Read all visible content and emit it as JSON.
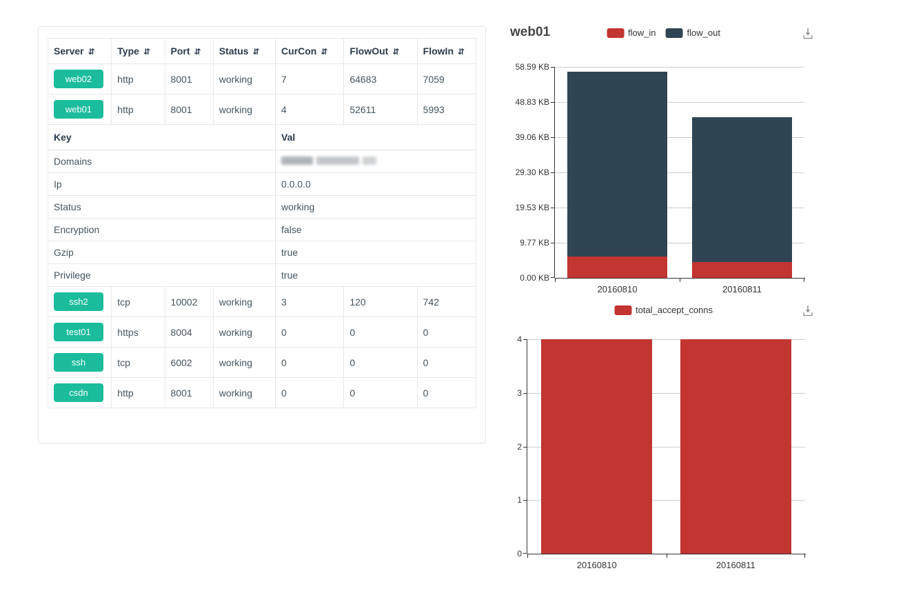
{
  "table": {
    "headers": [
      "Server",
      "Type",
      "Port",
      "Status",
      "CurCon",
      "FlowOut",
      "FlowIn"
    ],
    "sort_icon": "⇵",
    "badge_color": "#1abc9c",
    "server_rows_top": [
      {
        "server": "web02",
        "type": "http",
        "port": "8001",
        "status": "working",
        "curcon": "7",
        "flowout": "64683",
        "flowin": "7059"
      },
      {
        "server": "web01",
        "type": "http",
        "port": "8001",
        "status": "working",
        "curcon": "4",
        "flowout": "52611",
        "flowin": "5993"
      }
    ],
    "kv_header": {
      "key": "Key",
      "val": "Val"
    },
    "kv_rows": [
      {
        "key": "Domains",
        "val": "",
        "masked": true
      },
      {
        "key": "Ip",
        "val": "0.0.0.0"
      },
      {
        "key": "Status",
        "val": "working"
      },
      {
        "key": "Encryption",
        "val": "false"
      },
      {
        "key": "Gzip",
        "val": "true"
      },
      {
        "key": "Privilege",
        "val": "true"
      }
    ],
    "server_rows_bottom": [
      {
        "server": "ssh2",
        "type": "tcp",
        "port": "10002",
        "status": "working",
        "curcon": "3",
        "flowout": "120",
        "flowin": "742"
      },
      {
        "server": "test01",
        "type": "https",
        "port": "8004",
        "status": "working",
        "curcon": "0",
        "flowout": "0",
        "flowin": "0"
      },
      {
        "server": "ssh",
        "type": "tcp",
        "port": "6002",
        "status": "working",
        "curcon": "0",
        "flowout": "0",
        "flowin": "0"
      },
      {
        "server": "csdn",
        "type": "http",
        "port": "8001",
        "status": "working",
        "curcon": "0",
        "flowout": "0",
        "flowin": "0"
      }
    ]
  },
  "chart_data": [
    {
      "type": "bar",
      "stacked": true,
      "title": "web01",
      "categories": [
        "20160810",
        "20160811"
      ],
      "series": [
        {
          "name": "flow_in",
          "color": "#c23531",
          "values": [
            5.85,
            4.4
          ]
        },
        {
          "name": "flow_out",
          "color": "#2f4554",
          "values": [
            51.38,
            40.2
          ]
        }
      ],
      "unit": "KB",
      "ymax": 58.59,
      "yticks": [
        "0.00 KB",
        "9.77 KB",
        "19.53 KB",
        "29.30 KB",
        "39.06 KB",
        "48.83 KB",
        "58.59 KB"
      ],
      "xlabel": "",
      "ylabel": "",
      "legend_position": "top",
      "grid": true,
      "toolbox": [
        "save-as-image"
      ]
    },
    {
      "type": "bar",
      "stacked": false,
      "title": "",
      "categories": [
        "20160810",
        "20160811"
      ],
      "series": [
        {
          "name": "total_accept_conns",
          "color": "#c23531",
          "values": [
            4,
            4
          ]
        }
      ],
      "unit": "",
      "ymax": 4,
      "yticks": [
        "0",
        "1",
        "2",
        "3",
        "4"
      ],
      "xlabel": "",
      "ylabel": "",
      "legend_position": "top",
      "grid": true,
      "toolbox": [
        "save-as-image"
      ]
    }
  ]
}
